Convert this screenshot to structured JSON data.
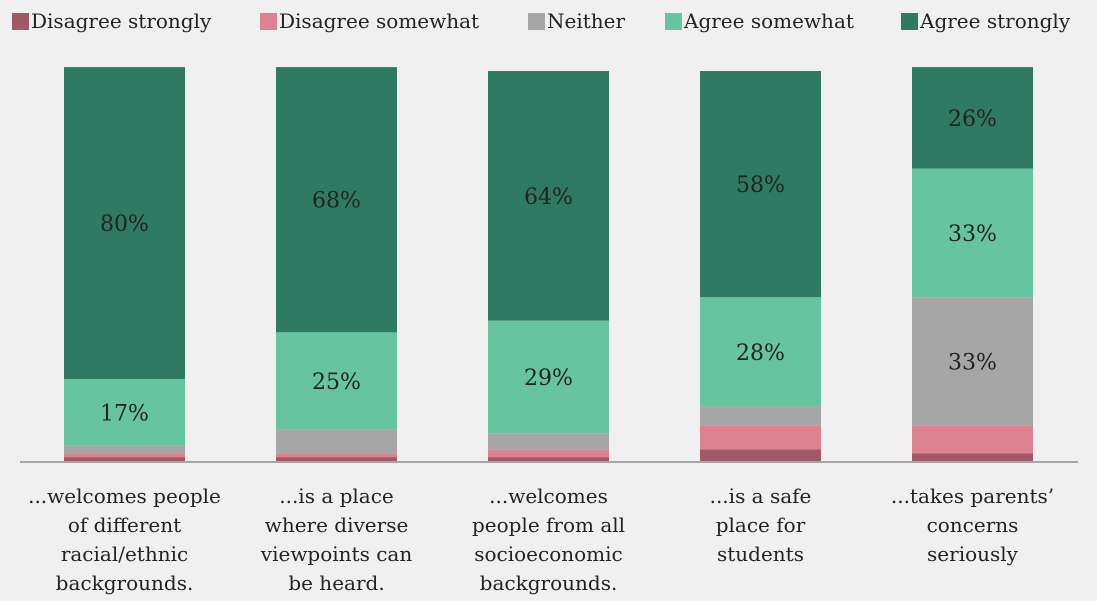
{
  "chart_data": {
    "type": "bar",
    "stacked": true,
    "percent_axis": true,
    "legend_position": "top",
    "grid": false,
    "ylim": [
      0,
      100
    ],
    "categories": [
      [
        "...welcomes people",
        "of different",
        "racial/ethnic",
        "backgrounds."
      ],
      [
        "...is a place",
        "where diverse",
        "viewpoints can",
        "be heard."
      ],
      [
        "...welcomes",
        "people from all",
        "socioeconomic",
        "backgrounds."
      ],
      [
        "...is a safe",
        "place for",
        "students"
      ],
      [
        "...takes parents’",
        "concerns",
        "seriously"
      ]
    ],
    "series": [
      {
        "name": "Disagree strongly",
        "color": "#a05a66",
        "values": [
          1,
          1,
          1,
          3,
          2
        ],
        "labels": [
          "",
          "",
          "",
          "",
          ""
        ]
      },
      {
        "name": "Disagree somewhat",
        "color": "#dc8290",
        "values": [
          1,
          1,
          2,
          6,
          7
        ],
        "labels": [
          "",
          "",
          "",
          "",
          ""
        ]
      },
      {
        "name": "Neither",
        "color": "#a6a6a6",
        "values": [
          2,
          6,
          4,
          5,
          33
        ],
        "labels": [
          "",
          "",
          "",
          "",
          "33%"
        ]
      },
      {
        "name": "Agree somewhat",
        "color": "#66c4a0",
        "values": [
          17,
          25,
          29,
          28,
          33
        ],
        "labels": [
          "17%",
          "25%",
          "29%",
          "28%",
          "33%"
        ]
      },
      {
        "name": "Agree strongly",
        "color": "#2f7a62",
        "values": [
          80,
          68,
          64,
          58,
          26
        ],
        "labels": [
          "80%",
          "68%",
          "64%",
          "58%",
          "26%"
        ]
      }
    ],
    "axis_color": "#a6a6a6"
  }
}
